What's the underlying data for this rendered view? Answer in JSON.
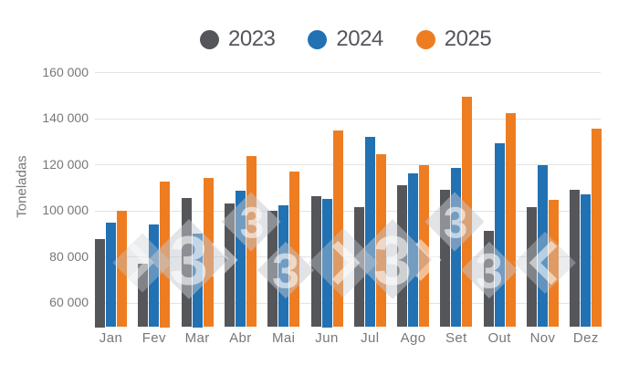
{
  "chart_data": {
    "type": "bar",
    "title": "",
    "xlabel": "",
    "ylabel": "Toneladas",
    "categories": [
      "Jan",
      "Fev",
      "Mar",
      "Abr",
      "Mai",
      "Jun",
      "Jul",
      "Ago",
      "Set",
      "Out",
      "Nov",
      "Dez"
    ],
    "series": [
      {
        "name": "2023",
        "color": "#54565A",
        "values": [
          87500,
          77000,
          105500,
          103000,
          99800,
          106000,
          101500,
          111000,
          109000,
          91000,
          101500,
          109000
        ]
      },
      {
        "name": "2024",
        "color": "#2271B3",
        "values": [
          94500,
          94000,
          90000,
          108500,
          102000,
          105000,
          132000,
          116000,
          118500,
          129000,
          119500,
          107000
        ]
      },
      {
        "name": "2025",
        "color": "#EE7D22",
        "values": [
          99800,
          112500,
          114000,
          123500,
          117000,
          134500,
          124500,
          119500,
          149500,
          142000,
          104500,
          135500
        ]
      }
    ],
    "ylim": [
      49400,
      160000
    ],
    "yticks": [
      160000,
      140000,
      120000,
      100000,
      80000,
      60000
    ],
    "ytick_labels": [
      "160 000",
      "140 000",
      "120 000",
      "100 000",
      "80 000",
      "60 000"
    ],
    "grid": "horizontal",
    "legend_position": "top"
  },
  "watermark": {
    "glyph": "3"
  }
}
